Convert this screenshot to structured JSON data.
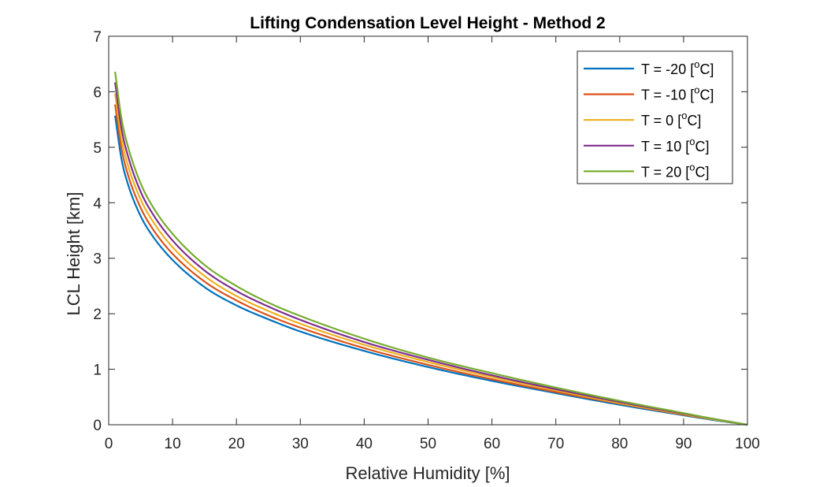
{
  "chart_data": {
    "type": "line",
    "title": "Lifting Condensation Level Height - Method 2",
    "xlabel": "Relative Humidity [%]",
    "ylabel": "LCL Height [km]",
    "xlim": [
      0,
      100
    ],
    "ylim": [
      0,
      7
    ],
    "xticks": [
      0,
      10,
      20,
      30,
      40,
      50,
      60,
      70,
      80,
      90,
      100
    ],
    "yticks": [
      0,
      1,
      2,
      3,
      4,
      5,
      6,
      7
    ],
    "grid": false,
    "legend_position": "top-right",
    "x": [
      1,
      2,
      3,
      5,
      7,
      10,
      15,
      20,
      25,
      30,
      40,
      50,
      60,
      70,
      80,
      90,
      95,
      100
    ],
    "series": [
      {
        "name": "T = -20 [oC]",
        "label_base": "T = -20 [",
        "label_sup": "o",
        "label_end": "C]",
        "color": "#0072BD",
        "values": [
          5.57,
          4.79,
          4.34,
          3.76,
          3.38,
          2.97,
          2.48,
          2.15,
          1.9,
          1.68,
          1.33,
          1.04,
          0.79,
          0.57,
          0.36,
          0.17,
          0.08,
          0
        ]
      },
      {
        "name": "T = -10 [oC]",
        "label_base": "T = -10 [",
        "label_sup": "o",
        "label_end": "C]",
        "color": "#D95319",
        "values": [
          5.77,
          4.98,
          4.51,
          3.91,
          3.51,
          3.08,
          2.58,
          2.24,
          1.97,
          1.75,
          1.38,
          1.08,
          0.82,
          0.59,
          0.38,
          0.18,
          0.09,
          0
        ]
      },
      {
        "name": "T = 0 [oC]",
        "label_base": "T = 0 [",
        "label_sup": "o",
        "label_end": "C]",
        "color": "#EDB120",
        "values": [
          5.97,
          5.16,
          4.68,
          4.06,
          3.65,
          3.2,
          2.68,
          2.32,
          2.05,
          1.82,
          1.44,
          1.13,
          0.86,
          0.62,
          0.39,
          0.19,
          0.09,
          0
        ]
      },
      {
        "name": "T = 10 [oC]",
        "label_base": "T = 10 [",
        "label_sup": "o",
        "label_end": "C]",
        "color": "#7E2F8E",
        "values": [
          6.17,
          5.34,
          4.85,
          4.2,
          3.78,
          3.32,
          2.78,
          2.41,
          2.13,
          1.89,
          1.49,
          1.17,
          0.89,
          0.64,
          0.41,
          0.2,
          0.1,
          0
        ]
      },
      {
        "name": "T = 20 [oC]",
        "label_base": "T = 20 [",
        "label_sup": "o",
        "label_end": "C]",
        "color": "#77AC30",
        "values": [
          6.36,
          5.52,
          5.02,
          4.35,
          3.91,
          3.44,
          2.88,
          2.5,
          2.2,
          1.96,
          1.55,
          1.21,
          0.93,
          0.67,
          0.43,
          0.21,
          0.1,
          0
        ]
      }
    ]
  }
}
